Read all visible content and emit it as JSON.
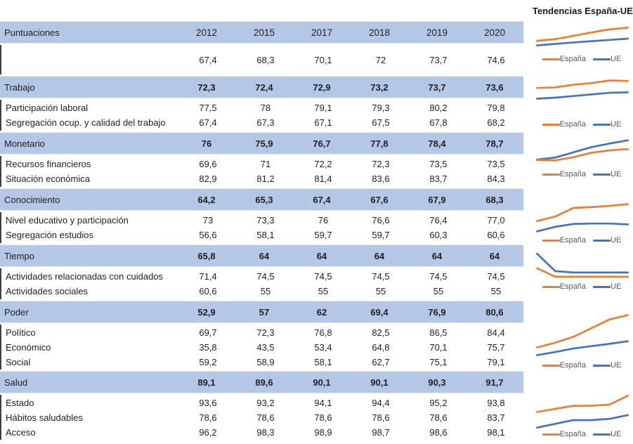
{
  "colors": {
    "espana": "#ED7D31",
    "ue": "#4472C4",
    "section_row_bg": "#B4C7E7"
  },
  "trends": {
    "title": "Tendencias España-UE"
  },
  "table": {
    "header": {
      "label": "Puntuaciones",
      "years": [
        "2012",
        "2015",
        "2017",
        "2018",
        "2019",
        "2020"
      ]
    },
    "sections": [
      {
        "label": "",
        "rows": [
          {
            "label": "",
            "values": [
              "67,4",
              "68,3",
              "70,1",
              "72",
              "73,7",
              "74,6"
            ]
          }
        ]
      },
      {
        "label": "Trabajo",
        "values": [
          "72,3",
          "72,4",
          "72,9",
          "73,2",
          "73,7",
          "73,6"
        ],
        "rows": [
          {
            "label": "Participación laboral",
            "values": [
              "77,5",
              "78",
              "79,1",
              "79,3",
              "80,2",
              "79,8"
            ]
          },
          {
            "label": "Segregación ocup. y calidad del trabajo",
            "values": [
              "67,4",
              "67,3",
              "67,1",
              "67,5",
              "67,8",
              "68,2"
            ]
          }
        ]
      },
      {
        "label": "Monetario",
        "values": [
          "76",
          "75,9",
          "76,7",
          "77,8",
          "78,4",
          "78,7"
        ],
        "rows": [
          {
            "label": "Recursos financieros",
            "values": [
              "69,6",
              "71",
              "72,2",
              "72,3",
              "73,5",
              "73,5"
            ]
          },
          {
            "label": "Situación económica",
            "values": [
              "82,9",
              "81,2",
              "81,4",
              "83,6",
              "83,7",
              "84,3"
            ]
          }
        ]
      },
      {
        "label": "Conocimiento",
        "values": [
          "64,2",
          "65,3",
          "67,4",
          "67,6",
          "67,9",
          "68,3"
        ],
        "rows": [
          {
            "label": "Nivel educativo y participación",
            "values": [
              "73",
              "73,3",
              "76",
              "76,6",
              "76,4",
              "77,0"
            ]
          },
          {
            "label": "Segregación estudios",
            "values": [
              "56,6",
              "58,1",
              "59,7",
              "59,7",
              "60,3",
              "60,6"
            ]
          }
        ]
      },
      {
        "label": "Tiempo",
        "values": [
          "65,8",
          "64",
          "64",
          "64",
          "64",
          "64"
        ],
        "rows": [
          {
            "label": "Actividades relacionadas con cuidados",
            "values": [
              "71,4",
              "74,5",
              "74,5",
              "74,5",
              "74,5",
              "74,5"
            ]
          },
          {
            "label": "Actividades sociales",
            "values": [
              "60,6",
              "55",
              "55",
              "55",
              "55",
              "55"
            ]
          }
        ]
      },
      {
        "label": "Poder",
        "values": [
          "52,9",
          "57",
          "62",
          "69,4",
          "76,9",
          "80,6"
        ],
        "rows": [
          {
            "label": "Político",
            "values": [
              "69,7",
              "72,3",
              "76,8",
              "82,5",
              "86,5",
              "84,4"
            ]
          },
          {
            "label": "Económico",
            "values": [
              "35,8",
              "43,5",
              "53,4",
              "64,8",
              "70,1",
              "75,7"
            ]
          },
          {
            "label": "Social",
            "values": [
              "59,2",
              "58,9",
              "58,1",
              "62,7",
              "75,1",
              "79,1"
            ]
          }
        ]
      },
      {
        "label": "Salud",
        "values": [
          "89,1",
          "89,6",
          "90,1",
          "90,1",
          "90,3",
          "91,7"
        ],
        "rows": [
          {
            "label": "Estado",
            "values": [
              "93,6",
              "93,2",
              "94,1",
              "94,4",
              "95,2",
              "93,8"
            ]
          },
          {
            "label": "Hábitos saludables",
            "values": [
              "78,6",
              "78,6",
              "78,6",
              "78,6",
              "78,6",
              "83,7"
            ]
          },
          {
            "label": "Acceso",
            "values": [
              "96,2",
              "98,3",
              "98,9",
              "98,7",
              "98,6",
              "98,1"
            ]
          }
        ]
      }
    ]
  },
  "chart_data": [
    {
      "type": "line",
      "section": "Puntuaciones",
      "x": [
        2012,
        2015,
        2017,
        2018,
        2019,
        2020
      ],
      "legend_position": "below",
      "grid": false,
      "series": [
        {
          "name": "España",
          "color": "#ED7D31",
          "values": [
            67.4,
            68.3,
            70.1,
            72,
            73.7,
            74.6
          ]
        },
        {
          "name": "UE",
          "color": "#4472C4",
          "values": [
            64.9,
            65.7,
            66.5,
            67.2,
            67.9,
            68.6
          ]
        }
      ]
    },
    {
      "type": "line",
      "section": "Trabajo",
      "x": [
        2012,
        2015,
        2017,
        2018,
        2019,
        2020
      ],
      "legend_position": "below",
      "grid": false,
      "series": [
        {
          "name": "España",
          "color": "#ED7D31",
          "values": [
            72.3,
            72.4,
            72.9,
            73.2,
            73.7,
            73.6
          ]
        },
        {
          "name": "UE",
          "color": "#4472C4",
          "values": [
            70.3,
            70.5,
            70.8,
            71.1,
            71.4,
            71.5
          ]
        }
      ]
    },
    {
      "type": "line",
      "section": "Monetario",
      "x": [
        2012,
        2015,
        2017,
        2018,
        2019,
        2020
      ],
      "legend_position": "below",
      "grid": false,
      "series": [
        {
          "name": "España",
          "color": "#ED7D31",
          "values": [
            76,
            75.9,
            76.7,
            77.8,
            78.4,
            78.7
          ]
        },
        {
          "name": "UE",
          "color": "#4472C4",
          "values": [
            76.1,
            76.6,
            77.9,
            79.2,
            80.1,
            80.9
          ]
        }
      ]
    },
    {
      "type": "line",
      "section": "Conocimiento",
      "x": [
        2012,
        2015,
        2017,
        2018,
        2019,
        2020
      ],
      "legend_position": "below",
      "grid": false,
      "series": [
        {
          "name": "España",
          "color": "#ED7D31",
          "values": [
            64.2,
            65.3,
            67.4,
            67.6,
            67.9,
            68.3
          ]
        },
        {
          "name": "UE",
          "color": "#4472C4",
          "values": [
            61.7,
            62.8,
            63.5,
            63.6,
            63.6,
            63.4
          ]
        }
      ]
    },
    {
      "type": "line",
      "section": "Tiempo",
      "x": [
        2012,
        2015,
        2017,
        2018,
        2019,
        2020
      ],
      "legend_position": "below",
      "grid": false,
      "series": [
        {
          "name": "España",
          "color": "#ED7D31",
          "values": [
            65.8,
            64,
            64,
            64,
            64,
            64
          ]
        },
        {
          "name": "UE",
          "color": "#4472C4",
          "values": [
            68.9,
            65.2,
            64.9,
            64.9,
            64.9,
            64.9
          ]
        }
      ]
    },
    {
      "type": "line",
      "section": "Poder",
      "x": [
        2012,
        2015,
        2017,
        2018,
        2019,
        2020
      ],
      "legend_position": "below",
      "grid": false,
      "series": [
        {
          "name": "España",
          "color": "#ED7D31",
          "values": [
            52.9,
            57,
            62,
            69.4,
            76.9,
            80.6
          ]
        },
        {
          "name": "UE",
          "color": "#4472C4",
          "values": [
            46.3,
            49,
            52,
            54,
            56,
            58.2
          ]
        }
      ]
    },
    {
      "type": "line",
      "section": "Salud",
      "x": [
        2012,
        2015,
        2017,
        2018,
        2019,
        2020
      ],
      "legend_position": "below",
      "grid": false,
      "series": [
        {
          "name": "España",
          "color": "#ED7D31",
          "values": [
            89.1,
            89.6,
            90.1,
            90.1,
            90.3,
            91.7
          ]
        },
        {
          "name": "UE",
          "color": "#4472C4",
          "values": [
            86.6,
            87.2,
            87.8,
            87.8,
            88,
            88.6
          ]
        }
      ]
    }
  ]
}
